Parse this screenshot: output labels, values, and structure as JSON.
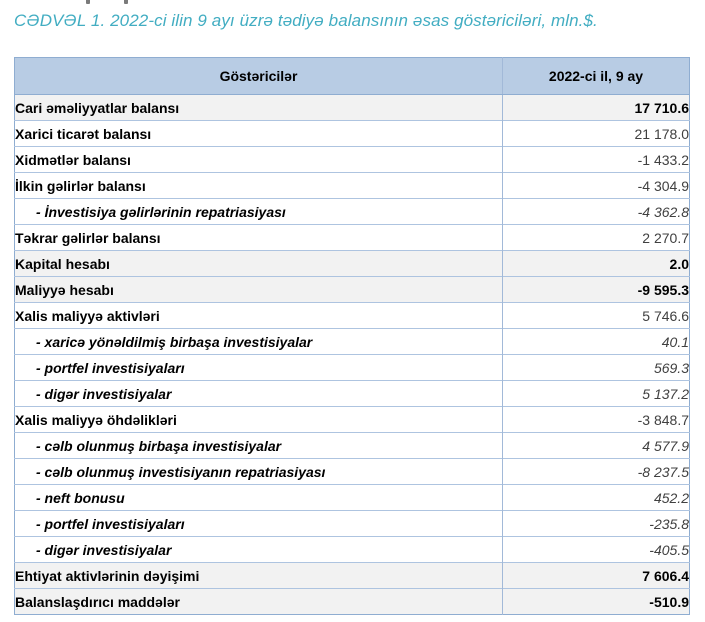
{
  "title": "CƏDVƏL 1. 2022-ci ilin 9 ayı üzrə tədiyə balansının əsas göstəriciləri, mln.$.",
  "table": {
    "headers": [
      "Göstəricilər",
      "2022-ci il, 9 ay"
    ],
    "rows": [
      {
        "label": "Cari əməliyyatlar balansı",
        "value": "17 710.6",
        "style": "total"
      },
      {
        "label": "Xarici ticarət balansı",
        "value": "21 178.0",
        "style": "main"
      },
      {
        "label": "Xidmətlər balansı",
        "value": "-1 433.2",
        "style": "main"
      },
      {
        "label": "İlkin gəlirlər balansı",
        "value": "-4 304.9",
        "style": "main"
      },
      {
        "label": "- İnvestisiya gəlirlərinin repatriasiyası",
        "value": "-4 362.8",
        "style": "sub"
      },
      {
        "label": "Təkrar gəlirlər balansı",
        "value": "2 270.7",
        "style": "main"
      },
      {
        "label": "Kapital hesabı",
        "value": "2.0",
        "style": "total"
      },
      {
        "label": "Maliyyə hesabı",
        "value": "-9 595.3",
        "style": "total"
      },
      {
        "label": "Xalis maliyyə aktivləri",
        "value": "5 746.6",
        "style": "main"
      },
      {
        "label": "- xaricə yönəldilmiş birbaşa investisiyalar",
        "value": "40.1",
        "style": "sub"
      },
      {
        "label": "- portfel investisiyaları",
        "value": "569.3",
        "style": "sub"
      },
      {
        "label": "- digər investisiyalar",
        "value": "5 137.2",
        "style": "sub"
      },
      {
        "label": "Xalis maliyyə öhdəlikləri",
        "value": "-3 848.7",
        "style": "main"
      },
      {
        "label": "- cəlb olunmuş birbaşa investisiyalar",
        "value": "4 577.9",
        "style": "sub"
      },
      {
        "label": "- cəlb olunmuş investisiyanın repatriasiyası",
        "value": "-8 237.5",
        "style": "sub"
      },
      {
        "label": "- neft bonusu",
        "value": "452.2",
        "style": "sub"
      },
      {
        "label": "- portfel investisiyaları",
        "value": "-235.8",
        "style": "sub"
      },
      {
        "label": "- digər investisiyalar",
        "value": "-405.5",
        "style": "sub"
      },
      {
        "label": "Ehtiyat aktivlərinin dəyişimi",
        "value": "7 606.4",
        "style": "total"
      },
      {
        "label": "Balanslaşdırıcı maddələr",
        "value": "-510.9",
        "style": "total"
      }
    ]
  },
  "colors": {
    "title_text": "#42adc2",
    "header_bg": "#b8cce4",
    "shaded_row_bg": "#f2f2f2",
    "outer_border": "#8fadd1",
    "inner_border": "#aec4e0",
    "label_text": "#000000",
    "value_text": "#404040"
  }
}
